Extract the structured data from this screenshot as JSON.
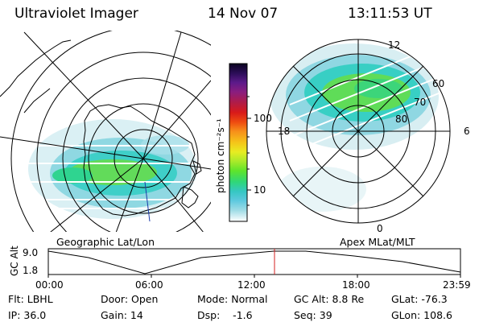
{
  "header": {
    "instrument": "Ultraviolet Imager",
    "date": "14 Nov 07",
    "time": "13:11:53 UT"
  },
  "colorbar": {
    "label": "photon cm⁻²s⁻¹",
    "ticks": [
      "100",
      "10"
    ],
    "colors": [
      "#0b0320",
      "#2b0d57",
      "#5c1a8a",
      "#8a1d7f",
      "#b21c45",
      "#d81a1a",
      "#ee4a10",
      "#f7901a",
      "#f5c519",
      "#e8ec22",
      "#a9ea2a",
      "#5ee42b",
      "#2fd778",
      "#36c7c3",
      "#5fc9df",
      "#9fdce6",
      "#d5edf2",
      "#ffffff"
    ]
  },
  "left_panel": {
    "caption": "Geographic Lat/Lon"
  },
  "right_panel": {
    "caption": "Apex MLat/MLT",
    "mlt_labels": [
      "12",
      "18",
      "6",
      "0"
    ],
    "mlat_labels": [
      "60",
      "70",
      "80"
    ]
  },
  "altitude_plot": {
    "ylabel": "GC Alt",
    "yticks": [
      "9.0",
      "1.8"
    ],
    "xticks": [
      "00:00",
      "06:00",
      "12:00",
      "18:00",
      "23:59"
    ],
    "marker_color": "#d42020"
  },
  "status": {
    "row1": {
      "filter": "Flt: LBHL",
      "door": "Door: Open",
      "mode": "Mode: Normal",
      "gc_alt": "GC Alt: 8.8 Re",
      "glat": "GLat: -76.3"
    },
    "row2": {
      "ip": "IP: 36.0",
      "gain": "Gain: 14",
      "dsp": "Dsp:    -1.6",
      "seq": "Seq: 39",
      "glon": "GLon: 108.6"
    }
  }
}
